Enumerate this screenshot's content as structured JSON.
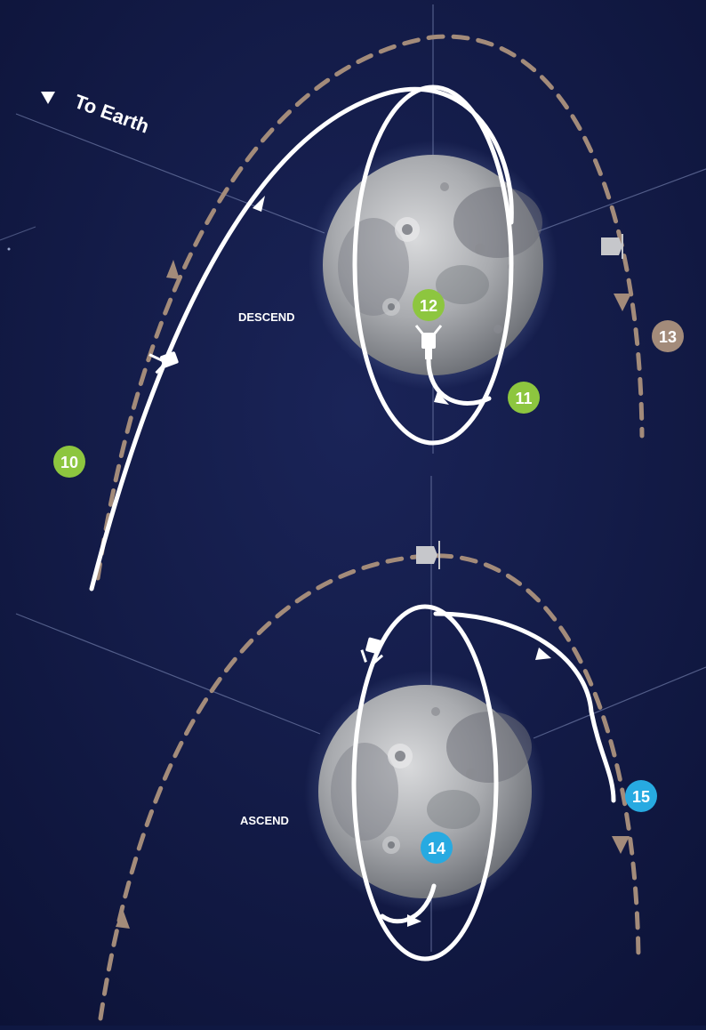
{
  "labels": {
    "to_earth": "To Earth",
    "descend": "DESCEND",
    "ascend": "ASCEND"
  },
  "badges": [
    {
      "id": "10",
      "text": "10",
      "color": "#8dc63f"
    },
    {
      "id": "11",
      "text": "11",
      "color": "#8dc63f"
    },
    {
      "id": "12",
      "text": "12",
      "color": "#8dc63f"
    },
    {
      "id": "13",
      "text": "13",
      "color": "#a38b7a"
    },
    {
      "id": "14",
      "text": "14",
      "color": "#27aae1"
    },
    {
      "id": "15",
      "text": "15",
      "color": "#27aae1"
    }
  ],
  "colors": {
    "background": "#101a46",
    "orbit_white": "#ffffff",
    "orbit_dashed": "#a38b7a",
    "axis_lines": "#6e7aa6"
  }
}
